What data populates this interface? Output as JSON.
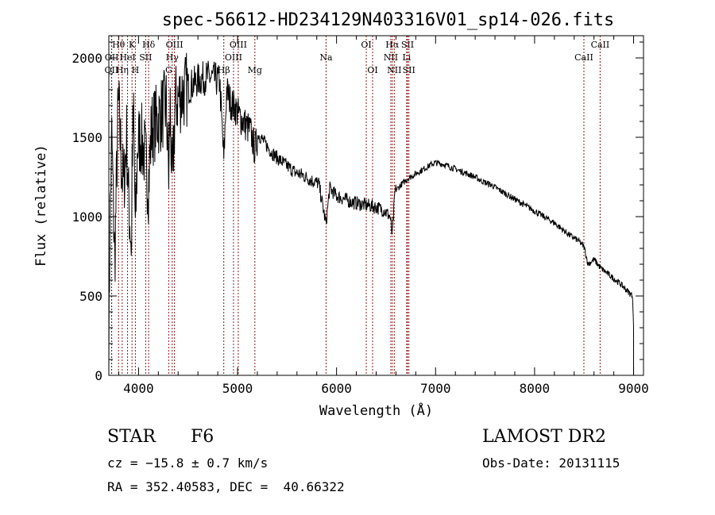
{
  "chart_data": {
    "type": "line",
    "title": "spec-56612-HD234129N403316V01_sp14-026.fits",
    "xlabel": "Wavelength (Å)",
    "ylabel": "Flux (relative)",
    "xlim": [
      3700,
      9100
    ],
    "ylim": [
      0,
      2140
    ],
    "xticks": [
      4000,
      5000,
      6000,
      7000,
      8000,
      9000
    ],
    "yticks": [
      0,
      500,
      1000,
      1500,
      2000
    ],
    "grid": false,
    "series": [
      {
        "name": "flux",
        "x": [
          3700,
          3710,
          3730,
          3760,
          3790,
          3800,
          3830,
          3850,
          3880,
          3900,
          3930,
          3935,
          3950,
          3968,
          3990,
          4020,
          4060,
          4100,
          4130,
          4180,
          4230,
          4280,
          4305,
          4320,
          4340,
          4370,
          4420,
          4480,
          4540,
          4600,
          4650,
          4700,
          4760,
          4820,
          4861,
          4890,
          4930,
          4980,
          5030,
          5080,
          5130,
          5175,
          5210,
          5280,
          5350,
          5420,
          5500,
          5580,
          5660,
          5740,
          5820,
          5894,
          5930,
          6000,
          6080,
          6160,
          6240,
          6320,
          6400,
          6480,
          6540,
          6563,
          6590,
          6650,
          6720,
          6800,
          6880,
          6960,
          7000,
          7080,
          7160,
          7240,
          7320,
          7400,
          7480,
          7560,
          7640,
          7720,
          7800,
          7880,
          7960,
          8040,
          8120,
          8200,
          8280,
          8360,
          8440,
          8500,
          8540,
          8600,
          8662,
          8700,
          8780,
          8860,
          8940,
          8990,
          9000
        ],
        "y": [
          80,
          900,
          1500,
          700,
          1600,
          1700,
          1300,
          1200,
          1500,
          1100,
          800,
          1400,
          1600,
          900,
          1450,
          1500,
          1400,
          1200,
          1550,
          1600,
          1650,
          1700,
          1250,
          1700,
          1150,
          1720,
          1760,
          1800,
          1830,
          1860,
          1870,
          1880,
          1870,
          1850,
          1350,
          1800,
          1720,
          1680,
          1620,
          1580,
          1540,
          1420,
          1520,
          1460,
          1400,
          1360,
          1320,
          1280,
          1260,
          1230,
          1210,
          950,
          1180,
          1130,
          1110,
          1090,
          1080,
          1070,
          1060,
          1040,
          1000,
          880,
          1160,
          1200,
          1240,
          1270,
          1300,
          1330,
          1340,
          1330,
          1310,
          1290,
          1270,
          1250,
          1220,
          1200,
          1170,
          1140,
          1110,
          1080,
          1050,
          1020,
          990,
          960,
          920,
          880,
          850,
          810,
          700,
          730,
          680,
          660,
          620,
          580,
          530,
          500,
          300
        ]
      }
    ],
    "lines": [
      {
        "label": "OII",
        "wave": 3727,
        "row": 2
      },
      {
        "label": "OII",
        "wave": 3729,
        "row": 1
      },
      {
        "label": "Hθ",
        "wave": 3798,
        "row": 0
      },
      {
        "label": "Hη",
        "wave": 3835,
        "row": 2
      },
      {
        "label": "HeI",
        "wave": 3889,
        "row": 1
      },
      {
        "label": "K",
        "wave": 3934,
        "row": 0
      },
      {
        "label": "H",
        "wave": 3968,
        "row": 2
      },
      {
        "label": "SII",
        "wave": 4072,
        "row": 1
      },
      {
        "label": "Hδ",
        "wave": 4102,
        "row": 0
      },
      {
        "label": "G",
        "wave": 4305,
        "row": 2
      },
      {
        "label": "Hγ",
        "wave": 4340,
        "row": 1
      },
      {
        "label": "OIII",
        "wave": 4363,
        "row": 0
      },
      {
        "label": "Hβ",
        "wave": 4861,
        "row": 2
      },
      {
        "label": "OIII",
        "wave": 4959,
        "row": 1
      },
      {
        "label": "OIII",
        "wave": 5007,
        "row": 0
      },
      {
        "label": "Mg",
        "wave": 5175,
        "row": 2
      },
      {
        "label": "Na",
        "wave": 5894,
        "row": 1
      },
      {
        "label": "OI",
        "wave": 6300,
        "row": 0
      },
      {
        "label": "OI",
        "wave": 6364,
        "row": 2
      },
      {
        "label": "NII",
        "wave": 6548,
        "row": 1
      },
      {
        "label": "Hα",
        "wave": 6563,
        "row": 0
      },
      {
        "label": "NII",
        "wave": 6583,
        "row": 2
      },
      {
        "label": "Li",
        "wave": 6708,
        "row": 1
      },
      {
        "label": "SII",
        "wave": 6717,
        "row": 0
      },
      {
        "label": "SII",
        "wave": 6731,
        "row": 2
      },
      {
        "label": "CaII",
        "wave": 8498,
        "row": 1
      },
      {
        "label": "CaII",
        "wave": 8662,
        "row": 0
      }
    ],
    "line_color": "#8b1a1a"
  },
  "info": {
    "class": "STAR",
    "subclass": "F6",
    "survey": "LAMOST DR2",
    "cz": "cz = −15.8 ± 0.7 km/s",
    "obs_date": "Obs-Date: 20131115",
    "coords": "RA = 352.40583, DEC =  40.66322"
  }
}
